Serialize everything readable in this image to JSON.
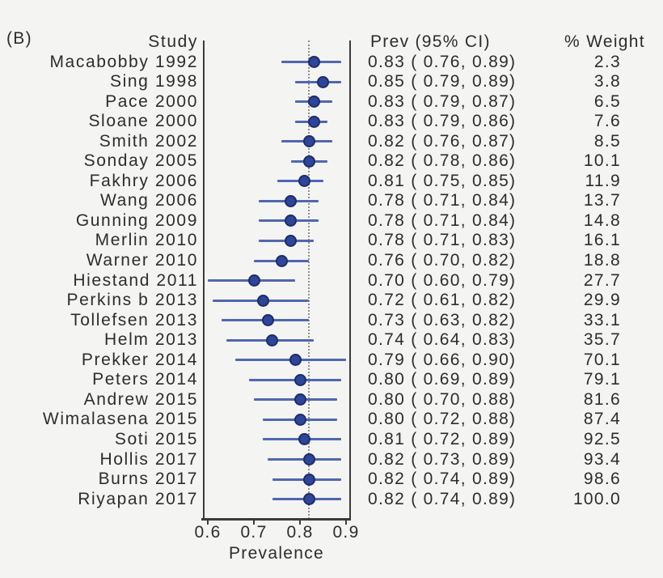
{
  "panel_label": "(B)",
  "headers": {
    "study": "Study",
    "prev_ci": "Prev (95% CI)",
    "weight": "% Weight"
  },
  "chart_data": {
    "type": "scatter",
    "subtype": "forest-plot",
    "title": "",
    "xlabel": "Prevalence",
    "ylabel": "",
    "xticks": [
      "0.6",
      "0.7",
      "0.8",
      "0.9"
    ],
    "xlim": [
      0.59,
      0.915
    ],
    "reference_line_value": 0.82,
    "grid": false,
    "legend": "none",
    "marker_color": "#2e4699",
    "ci_line_color": "#4f66b2",
    "axis_color": "#3b3b3b",
    "studies": [
      {
        "study": "Macabobby 1992",
        "prev": 0.83,
        "ci_low": 0.76,
        "ci_high": 0.89,
        "prev_ci_text": "0.83 ( 0.76, 0.89)",
        "weight": "2.3"
      },
      {
        "study": "Sing 1998",
        "prev": 0.85,
        "ci_low": 0.79,
        "ci_high": 0.89,
        "prev_ci_text": "0.85 ( 0.79, 0.89)",
        "weight": "3.8"
      },
      {
        "study": "Pace 2000",
        "prev": 0.83,
        "ci_low": 0.79,
        "ci_high": 0.87,
        "prev_ci_text": "0.83 ( 0.79, 0.87)",
        "weight": "6.5"
      },
      {
        "study": "Sloane 2000",
        "prev": 0.83,
        "ci_low": 0.79,
        "ci_high": 0.86,
        "prev_ci_text": "0.83 ( 0.79, 0.86)",
        "weight": "7.6"
      },
      {
        "study": "Smith 2002",
        "prev": 0.82,
        "ci_low": 0.76,
        "ci_high": 0.87,
        "prev_ci_text": "0.82 ( 0.76, 0.87)",
        "weight": "8.5"
      },
      {
        "study": "Sonday 2005",
        "prev": 0.82,
        "ci_low": 0.78,
        "ci_high": 0.86,
        "prev_ci_text": "0.82 ( 0.78, 0.86)",
        "weight": "10.1"
      },
      {
        "study": "Fakhry 2006",
        "prev": 0.81,
        "ci_low": 0.75,
        "ci_high": 0.85,
        "prev_ci_text": "0.81 ( 0.75, 0.85)",
        "weight": "11.9"
      },
      {
        "study": "Wang 2006",
        "prev": 0.78,
        "ci_low": 0.71,
        "ci_high": 0.84,
        "prev_ci_text": "0.78 ( 0.71, 0.84)",
        "weight": "13.7"
      },
      {
        "study": "Gunning 2009",
        "prev": 0.78,
        "ci_low": 0.71,
        "ci_high": 0.84,
        "prev_ci_text": "0.78 ( 0.71, 0.84)",
        "weight": "14.8"
      },
      {
        "study": "Merlin 2010",
        "prev": 0.78,
        "ci_low": 0.71,
        "ci_high": 0.83,
        "prev_ci_text": "0.78 ( 0.71, 0.83)",
        "weight": "16.1"
      },
      {
        "study": "Warner 2010",
        "prev": 0.76,
        "ci_low": 0.7,
        "ci_high": 0.82,
        "prev_ci_text": "0.76 ( 0.70, 0.82)",
        "weight": "18.8"
      },
      {
        "study": "Hiestand 2011",
        "prev": 0.7,
        "ci_low": 0.6,
        "ci_high": 0.79,
        "prev_ci_text": "0.70 ( 0.60, 0.79)",
        "weight": "27.7"
      },
      {
        "study": "Perkins b 2013",
        "prev": 0.72,
        "ci_low": 0.61,
        "ci_high": 0.82,
        "prev_ci_text": "0.72 ( 0.61, 0.82)",
        "weight": "29.9"
      },
      {
        "study": "Tollefsen 2013",
        "prev": 0.73,
        "ci_low": 0.63,
        "ci_high": 0.82,
        "prev_ci_text": "0.73 ( 0.63, 0.82)",
        "weight": "33.1"
      },
      {
        "study": "Helm 2013",
        "prev": 0.74,
        "ci_low": 0.64,
        "ci_high": 0.83,
        "prev_ci_text": "0.74 ( 0.64, 0.83)",
        "weight": "35.7"
      },
      {
        "study": "Prekker 2014",
        "prev": 0.79,
        "ci_low": 0.66,
        "ci_high": 0.9,
        "prev_ci_text": "0.79 ( 0.66, 0.90)",
        "weight": "70.1"
      },
      {
        "study": "Peters 2014",
        "prev": 0.8,
        "ci_low": 0.69,
        "ci_high": 0.89,
        "prev_ci_text": "0.80 ( 0.69, 0.89)",
        "weight": "79.1"
      },
      {
        "study": "Andrew 2015",
        "prev": 0.8,
        "ci_low": 0.7,
        "ci_high": 0.88,
        "prev_ci_text": "0.80 ( 0.70, 0.88)",
        "weight": "81.6"
      },
      {
        "study": "Wimalasena 2015",
        "prev": 0.8,
        "ci_low": 0.72,
        "ci_high": 0.88,
        "prev_ci_text": "0.80 ( 0.72, 0.88)",
        "weight": "87.4"
      },
      {
        "study": "Soti 2015",
        "prev": 0.81,
        "ci_low": 0.72,
        "ci_high": 0.89,
        "prev_ci_text": "0.81 ( 0.72, 0.89)",
        "weight": "92.5"
      },
      {
        "study": "Hollis 2017",
        "prev": 0.82,
        "ci_low": 0.73,
        "ci_high": 0.89,
        "prev_ci_text": "0.82 ( 0.73, 0.89)",
        "weight": "93.4"
      },
      {
        "study": "Burns 2017",
        "prev": 0.82,
        "ci_low": 0.74,
        "ci_high": 0.89,
        "prev_ci_text": "0.82 ( 0.74, 0.89)",
        "weight": "98.6"
      },
      {
        "study": "Riyapan 2017",
        "prev": 0.82,
        "ci_low": 0.74,
        "ci_high": 0.89,
        "prev_ci_text": "0.82 ( 0.74, 0.89)",
        "weight": "100.0"
      }
    ]
  }
}
